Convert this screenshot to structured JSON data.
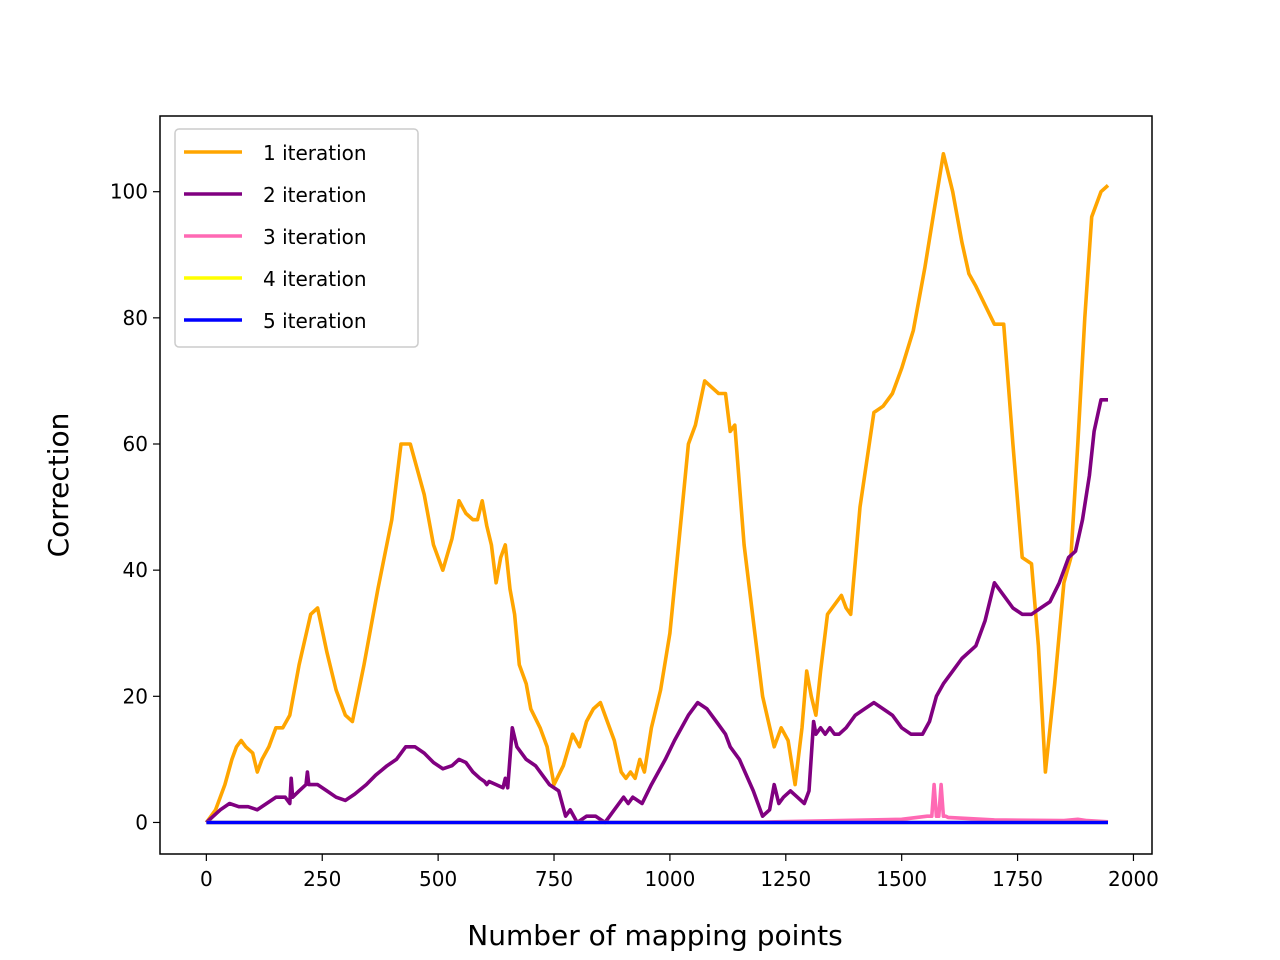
{
  "chart_data": {
    "type": "line",
    "title": "",
    "xlabel": "Number of mapping points",
    "ylabel": "Correction",
    "xlim": [
      -100,
      2040
    ],
    "ylim": [
      -5,
      112
    ],
    "xticks": [
      0,
      250,
      500,
      750,
      1000,
      1250,
      1500,
      1750,
      2000
    ],
    "yticks": [
      0,
      20,
      40,
      60,
      80,
      100
    ],
    "grid": false,
    "legend_position": "top-left",
    "series": [
      {
        "name": "1 iteration",
        "color": "#FFA500",
        "x": [
          0,
          20,
          40,
          55,
          65,
          75,
          85,
          100,
          110,
          120,
          135,
          150,
          165,
          180,
          200,
          225,
          240,
          260,
          280,
          300,
          315,
          340,
          370,
          400,
          420,
          440,
          470,
          490,
          510,
          530,
          545,
          560,
          575,
          585,
          595,
          605,
          615,
          625,
          635,
          645,
          655,
          665,
          675,
          690,
          700,
          720,
          735,
          750,
          770,
          790,
          805,
          820,
          835,
          850,
          865,
          880,
          895,
          905,
          915,
          925,
          935,
          945,
          960,
          980,
          1000,
          1020,
          1040,
          1055,
          1075,
          1090,
          1105,
          1120,
          1130,
          1140,
          1160,
          1180,
          1200,
          1225,
          1240,
          1255,
          1270,
          1285,
          1295,
          1305,
          1315,
          1325,
          1340,
          1360,
          1370,
          1380,
          1390,
          1410,
          1440,
          1460,
          1480,
          1500,
          1525,
          1550,
          1570,
          1590,
          1610,
          1630,
          1645,
          1660,
          1680,
          1700,
          1720,
          1740,
          1760,
          1780,
          1795,
          1810,
          1830,
          1850,
          1865,
          1880,
          1895,
          1910,
          1930,
          1945
        ],
        "y": [
          0,
          2,
          6,
          10,
          12,
          13,
          12,
          11,
          8,
          10,
          12,
          15,
          15,
          17,
          25,
          33,
          34,
          27,
          21,
          17,
          16,
          25,
          37,
          48,
          60,
          60,
          52,
          44,
          40,
          45,
          51,
          49,
          48,
          48,
          51,
          47,
          44,
          38,
          42,
          44,
          37,
          33,
          25,
          22,
          18,
          15,
          12,
          6,
          9,
          14,
          12,
          16,
          18,
          19,
          16,
          13,
          8,
          7,
          8,
          7,
          10,
          8,
          15,
          21,
          30,
          45,
          60,
          63,
          70,
          69,
          68,
          68,
          62,
          63,
          44,
          32,
          20,
          12,
          15,
          13,
          6,
          15,
          24,
          20,
          17,
          24,
          33,
          35,
          36,
          34,
          33,
          50,
          65,
          66,
          68,
          72,
          78,
          88,
          97,
          106,
          100,
          92,
          87,
          85,
          82,
          79,
          79,
          60,
          42,
          41,
          28,
          8,
          22,
          38,
          42,
          60,
          80,
          96,
          100,
          101
        ]
      },
      {
        "name": "2 iteration",
        "color": "#800080",
        "x": [
          0,
          15,
          30,
          50,
          70,
          90,
          110,
          130,
          150,
          170,
          180,
          183,
          186,
          200,
          215,
          218,
          221,
          240,
          260,
          280,
          300,
          320,
          345,
          365,
          390,
          410,
          430,
          450,
          470,
          490,
          510,
          530,
          545,
          560,
          575,
          590,
          600,
          605,
          610,
          625,
          640,
          645,
          650,
          660,
          670,
          690,
          710,
          740,
          760,
          775,
          785,
          800,
          820,
          840,
          860,
          880,
          900,
          910,
          920,
          940,
          960,
          990,
          1010,
          1040,
          1060,
          1080,
          1100,
          1120,
          1130,
          1150,
          1180,
          1200,
          1215,
          1225,
          1235,
          1245,
          1260,
          1275,
          1290,
          1300,
          1310,
          1315,
          1325,
          1335,
          1345,
          1355,
          1365,
          1380,
          1390,
          1400,
          1420,
          1440,
          1460,
          1480,
          1500,
          1520,
          1545,
          1560,
          1575,
          1590,
          1610,
          1630,
          1660,
          1680,
          1700,
          1720,
          1740,
          1760,
          1780,
          1800,
          1820,
          1840,
          1860,
          1875,
          1890,
          1905,
          1915,
          1930,
          1945
        ],
        "y": [
          0,
          1,
          2,
          3,
          2.5,
          2.5,
          2,
          3,
          4,
          4,
          3,
          7,
          4,
          5,
          6,
          8,
          6,
          6,
          5,
          4,
          3.5,
          4.5,
          6,
          7.5,
          9,
          10,
          12,
          12,
          11,
          9.5,
          8.5,
          9,
          10,
          9.5,
          8,
          7,
          6.5,
          6,
          6.5,
          6,
          5.5,
          7,
          5.5,
          15,
          12,
          10,
          9,
          6,
          5,
          1,
          2,
          0,
          1,
          1,
          0,
          2,
          4,
          3,
          4,
          3,
          6,
          10,
          13,
          17,
          19,
          18,
          16,
          14,
          12,
          10,
          5,
          1,
          2,
          6,
          3,
          4,
          5,
          4,
          3,
          5,
          16,
          14,
          15,
          14,
          15,
          14,
          14,
          15,
          16,
          17,
          18,
          19,
          18,
          17,
          15,
          14,
          14,
          16,
          20,
          22,
          24,
          26,
          28,
          32,
          38,
          36,
          34,
          33,
          33,
          34,
          35,
          38,
          42,
          43,
          48,
          55,
          62,
          67,
          67
        ]
      },
      {
        "name": "3 iteration",
        "color": "#FF69B4",
        "x": [
          0,
          400,
          800,
          1200,
          1500,
          1555,
          1565,
          1570,
          1575,
          1580,
          1585,
          1590,
          1595,
          1600,
          1700,
          1850,
          1880,
          1900,
          1945
        ],
        "y": [
          0,
          0,
          0,
          0.05,
          0.5,
          1,
          1,
          6,
          1,
          1,
          6,
          1,
          1,
          0.8,
          0.4,
          0.3,
          0.5,
          0.3,
          0.1
        ]
      },
      {
        "name": "4 iteration",
        "color": "#FFFF00",
        "x": [
          0,
          1945
        ],
        "y": [
          0,
          0
        ]
      },
      {
        "name": "5 iteration",
        "color": "#0000FF",
        "x": [
          0,
          1945
        ],
        "y": [
          0,
          0
        ]
      }
    ]
  }
}
